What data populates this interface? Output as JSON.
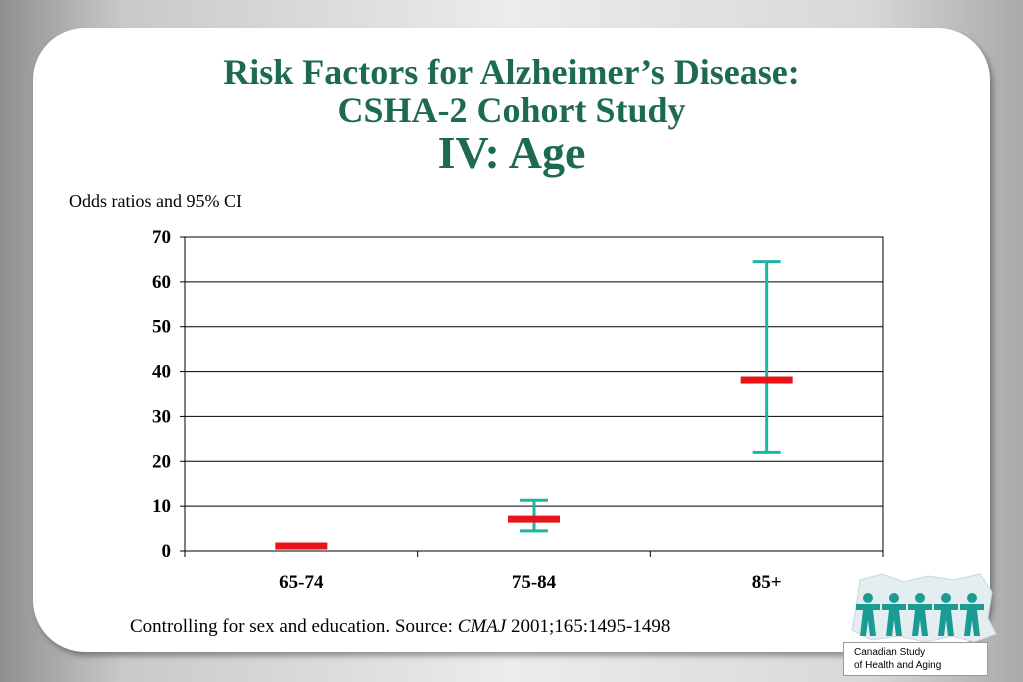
{
  "slide": {
    "title_line1": "Risk Factors for Alzheimer’s Disease:",
    "title_line2": "CSHA-2 Cohort Study",
    "title_line3": "IV:  Age",
    "ylabel": "Odds ratios and 95% CI",
    "footnote_prefix": "Controlling for sex and education.  Source: ",
    "footnote_journal": "CMAJ",
    "footnote_suffix": " 2001;165:1495-1498",
    "logo_line1": "Canadian Study",
    "logo_line2": "of Health and Aging"
  },
  "colors": {
    "title": "#1d6b4f",
    "point": "#e8141a",
    "errorbar": "#1fb5a6",
    "logo": "#1a9b93"
  },
  "chart_data": {
    "type": "errorbar",
    "categories": [
      "65-74",
      "75-84",
      "85+"
    ],
    "values": [
      1.0,
      7.0,
      38.0
    ],
    "ci_lower": [
      null,
      4.5,
      22.0
    ],
    "ci_upper": [
      null,
      11.3,
      64.5
    ],
    "ylabel": "Odds ratios and 95% CI",
    "ylim": [
      0,
      70
    ],
    "yticks": [
      0,
      10,
      20,
      30,
      40,
      50,
      60,
      70
    ],
    "grid": true
  }
}
